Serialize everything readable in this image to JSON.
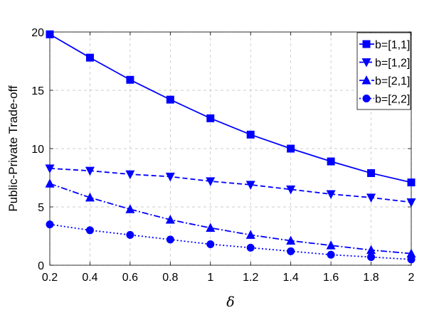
{
  "chart_data": {
    "type": "line",
    "title": "",
    "xlabel": "δ",
    "ylabel": "Public-Private Trade-off",
    "xlim": [
      0.2,
      2
    ],
    "ylim": [
      0,
      20
    ],
    "xticks": [
      "0.2",
      "0.4",
      "0.6",
      "0.8",
      "1",
      "1.2",
      "1.4",
      "1.6",
      "1.8",
      "2"
    ],
    "yticks": [
      "0",
      "5",
      "10",
      "15",
      "20"
    ],
    "grid": true,
    "legend_position": "top-right",
    "color": "#0000ff",
    "x": [
      0.2,
      0.4,
      0.6,
      0.8,
      1.0,
      1.2,
      1.4,
      1.6,
      1.8,
      2.0
    ],
    "series": [
      {
        "name": "b=[1,1]",
        "marker": "square",
        "line": "solid",
        "values": [
          19.8,
          17.8,
          15.9,
          14.2,
          12.6,
          11.2,
          10.0,
          8.9,
          7.9,
          7.1
        ]
      },
      {
        "name": "b=[1,2]",
        "marker": "triangle-down",
        "line": "dashed",
        "values": [
          8.3,
          8.1,
          7.8,
          7.6,
          7.2,
          6.9,
          6.5,
          6.1,
          5.8,
          5.4
        ]
      },
      {
        "name": "b=[2,1]",
        "marker": "triangle-up",
        "line": "dashdot",
        "values": [
          7.0,
          5.8,
          4.8,
          3.9,
          3.2,
          2.6,
          2.1,
          1.7,
          1.3,
          1.0
        ]
      },
      {
        "name": "b=[2,2]",
        "marker": "circle",
        "line": "dotted",
        "values": [
          3.5,
          3.0,
          2.6,
          2.2,
          1.8,
          1.5,
          1.2,
          0.9,
          0.7,
          0.5
        ]
      }
    ]
  }
}
